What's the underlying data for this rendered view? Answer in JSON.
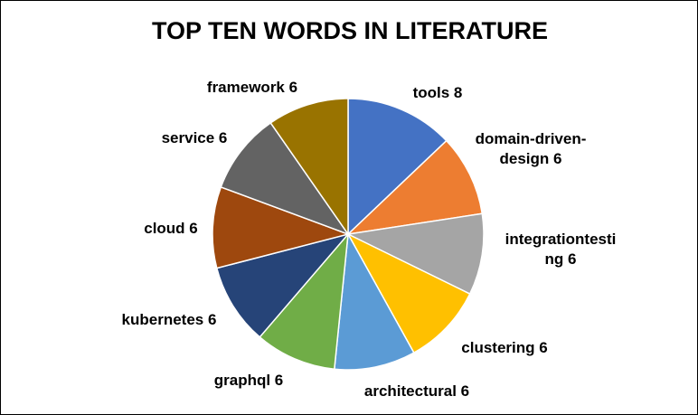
{
  "chart_data": {
    "type": "pie",
    "title": "TOP TEN WORDS IN LITERATURE",
    "slices": [
      {
        "label": "tools",
        "value": 8,
        "color": "#4472C4",
        "label_lines": [
          "tools 8"
        ]
      },
      {
        "label": "domain-driven-design",
        "value": 6,
        "color": "#ED7D31",
        "label_lines": [
          "domain-driven-",
          "design 6"
        ]
      },
      {
        "label": "integrationtesting",
        "value": 6,
        "color": "#A5A5A5",
        "label_lines": [
          "integrationtesti",
          "ng 6"
        ]
      },
      {
        "label": "clustering",
        "value": 6,
        "color": "#FFC000",
        "label_lines": [
          "clustering 6"
        ]
      },
      {
        "label": "architectural",
        "value": 6,
        "color": "#5B9BD5",
        "label_lines": [
          "architectural 6"
        ]
      },
      {
        "label": "graphql",
        "value": 6,
        "color": "#70AD47",
        "label_lines": [
          "graphql 6"
        ]
      },
      {
        "label": "kubernetes",
        "value": 6,
        "color": "#264478",
        "label_lines": [
          "kubernetes 6"
        ]
      },
      {
        "label": "cloud",
        "value": 6,
        "color": "#9E480E",
        "label_lines": [
          "cloud 6"
        ]
      },
      {
        "label": "service",
        "value": 6,
        "color": "#636363",
        "label_lines": [
          "service 6"
        ]
      },
      {
        "label": "framework",
        "value": 6,
        "color": "#997300",
        "label_lines": [
          "framework 6"
        ]
      }
    ],
    "legend": "none"
  }
}
